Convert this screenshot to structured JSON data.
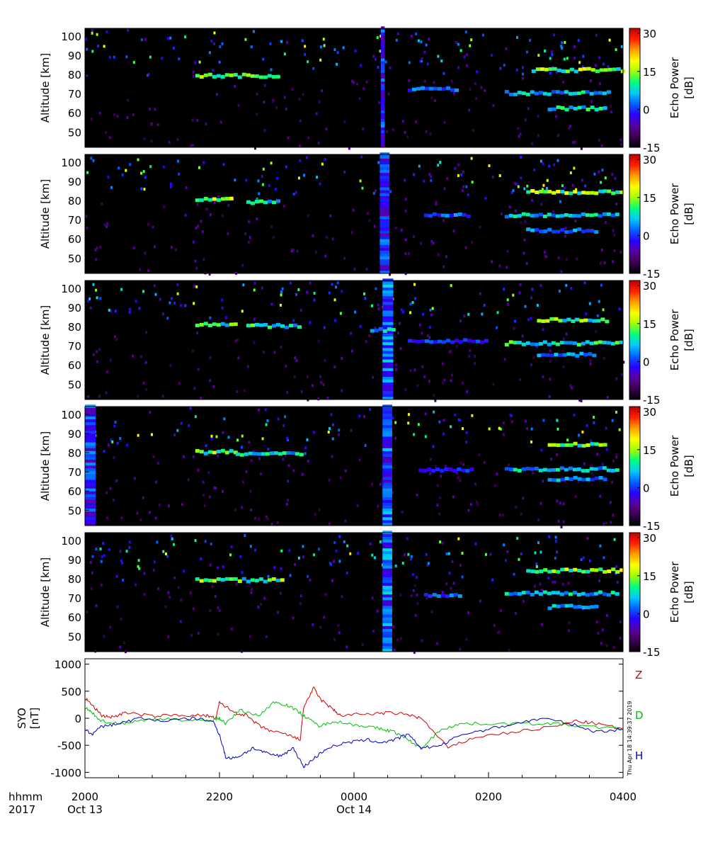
{
  "chart_data": [
    {
      "type": "heatmap",
      "panel": 1,
      "ylabel": "Altitude [km]",
      "ylim": [
        42,
        104
      ],
      "yticks": [
        50,
        60,
        70,
        80,
        90,
        100
      ],
      "colorbar": {
        "label": "Echo Power [dB]",
        "range": [
          -15,
          32
        ],
        "ticks": [
          -15,
          0,
          15,
          30
        ]
      },
      "echo_layers": [
        {
          "x_start": 0.205,
          "x_end": 0.36,
          "alt": 79,
          "level": 0.55
        },
        {
          "x_start": 0.83,
          "x_end": 1.0,
          "alt": 82,
          "level": 0.6
        },
        {
          "x_start": 0.78,
          "x_end": 0.97,
          "alt": 70,
          "level": 0.45
        },
        {
          "x_start": 0.86,
          "x_end": 0.97,
          "alt": 62,
          "level": 0.5
        },
        {
          "x_start": 0.6,
          "x_end": 0.69,
          "alt": 72,
          "level": 0.35
        }
      ],
      "vertical_bands": [
        {
          "x": 0.55,
          "width": 0.007,
          "level": 0.3
        }
      ]
    },
    {
      "type": "heatmap",
      "panel": 2,
      "ylabel": "Altitude [km]",
      "ylim": [
        42,
        104
      ],
      "yticks": [
        50,
        60,
        70,
        80,
        90,
        100
      ],
      "colorbar": {
        "label": "Echo Power [dB]",
        "range": [
          -15,
          32
        ],
        "ticks": [
          -15,
          0,
          15,
          30
        ]
      },
      "echo_layers": [
        {
          "x_start": 0.205,
          "x_end": 0.27,
          "alt": 80,
          "level": 0.6
        },
        {
          "x_start": 0.3,
          "x_end": 0.36,
          "alt": 79,
          "level": 0.5
        },
        {
          "x_start": 0.82,
          "x_end": 1.0,
          "alt": 84,
          "level": 0.6
        },
        {
          "x_start": 0.78,
          "x_end": 0.99,
          "alt": 72,
          "level": 0.45
        },
        {
          "x_start": 0.82,
          "x_end": 0.95,
          "alt": 64,
          "level": 0.4
        },
        {
          "x_start": 0.63,
          "x_end": 0.71,
          "alt": 72,
          "level": 0.35
        }
      ],
      "vertical_bands": [
        {
          "x": 0.548,
          "width": 0.018,
          "level": 0.3
        }
      ]
    },
    {
      "type": "heatmap",
      "panel": 3,
      "ylabel": "Altitude [km]",
      "ylim": [
        42,
        104
      ],
      "yticks": [
        50,
        60,
        70,
        80,
        90,
        100
      ],
      "colorbar": {
        "label": "Echo Power [dB]",
        "range": [
          -15,
          32
        ],
        "ticks": [
          -15,
          0,
          15,
          30
        ]
      },
      "echo_layers": [
        {
          "x_start": 0.205,
          "x_end": 0.28,
          "alt": 81,
          "level": 0.55
        },
        {
          "x_start": 0.3,
          "x_end": 0.4,
          "alt": 80,
          "level": 0.5
        },
        {
          "x_start": 0.53,
          "x_end": 0.57,
          "alt": 78,
          "level": 0.45
        },
        {
          "x_start": 0.84,
          "x_end": 0.97,
          "alt": 83,
          "level": 0.55
        },
        {
          "x_start": 0.78,
          "x_end": 1.0,
          "alt": 71,
          "level": 0.5
        },
        {
          "x_start": 0.84,
          "x_end": 0.95,
          "alt": 65,
          "level": 0.4
        },
        {
          "x_start": 0.6,
          "x_end": 0.75,
          "alt": 72,
          "level": 0.3
        }
      ],
      "vertical_bands": [
        {
          "x": 0.553,
          "width": 0.02,
          "level": 0.35
        }
      ]
    },
    {
      "type": "heatmap",
      "panel": 4,
      "ylabel": "Altitude [km]",
      "ylim": [
        42,
        104
      ],
      "yticks": [
        50,
        60,
        70,
        80,
        90,
        100
      ],
      "colorbar": {
        "label": "Echo Power [dB]",
        "range": [
          -15,
          32
        ],
        "ticks": [
          -15,
          0,
          15,
          30
        ]
      },
      "echo_layers": [
        {
          "x_start": 0.205,
          "x_end": 0.28,
          "alt": 80,
          "level": 0.55
        },
        {
          "x_start": 0.28,
          "x_end": 0.4,
          "alt": 79,
          "level": 0.45
        },
        {
          "x_start": 0.86,
          "x_end": 0.97,
          "alt": 84,
          "level": 0.55
        },
        {
          "x_start": 0.78,
          "x_end": 0.99,
          "alt": 71,
          "level": 0.45
        },
        {
          "x_start": 0.86,
          "x_end": 0.97,
          "alt": 66,
          "level": 0.4
        },
        {
          "x_start": 0.62,
          "x_end": 0.72,
          "alt": 71,
          "level": 0.3
        }
      ],
      "vertical_bands": [
        {
          "x": 0.553,
          "width": 0.018,
          "level": 0.35
        },
        {
          "x": 0.0,
          "width": 0.02,
          "level": 0.3
        }
      ]
    },
    {
      "type": "heatmap",
      "panel": 5,
      "ylabel": "Altitude [km]",
      "ylim": [
        42,
        104
      ],
      "yticks": [
        50,
        60,
        70,
        80,
        90,
        100
      ],
      "colorbar": {
        "label": "Echo Power [dB]",
        "range": [
          -15,
          32
        ],
        "ticks": [
          -15,
          0,
          15,
          30
        ]
      },
      "echo_layers": [
        {
          "x_start": 0.205,
          "x_end": 0.37,
          "alt": 79,
          "level": 0.55
        },
        {
          "x_start": 0.82,
          "x_end": 1.0,
          "alt": 84,
          "level": 0.6
        },
        {
          "x_start": 0.78,
          "x_end": 0.99,
          "alt": 72,
          "level": 0.45
        },
        {
          "x_start": 0.86,
          "x_end": 0.95,
          "alt": 65,
          "level": 0.45
        },
        {
          "x_start": 0.63,
          "x_end": 0.7,
          "alt": 71,
          "level": 0.35
        }
      ],
      "vertical_bands": [
        {
          "x": 0.553,
          "width": 0.018,
          "level": 0.35
        }
      ]
    },
    {
      "type": "line",
      "ylabel": "SYO [nT]",
      "ylim": [
        -1100,
        1100
      ],
      "yticks": [
        -1000,
        -500,
        0,
        500,
        1000
      ],
      "x_range_hours": [
        0,
        8
      ],
      "series": [
        {
          "name": "Z",
          "color": "#d00000",
          "x": [
            0,
            0.1,
            0.25,
            0.4,
            0.6,
            1.0,
            1.4,
            1.8,
            1.95,
            2.0,
            2.2,
            2.4,
            2.6,
            2.8,
            3.0,
            3.2,
            3.25,
            3.4,
            3.5,
            3.7,
            3.8,
            4.2,
            4.5,
            4.8,
            5.0,
            5.4,
            5.8,
            6.4,
            7.0,
            7.3,
            7.6,
            8.0
          ],
          "values": [
            380,
            250,
            50,
            20,
            100,
            40,
            60,
            50,
            0,
            300,
            120,
            50,
            -150,
            -250,
            -300,
            -400,
            200,
            560,
            350,
            150,
            50,
            80,
            100,
            70,
            0,
            -550,
            -350,
            -250,
            -150,
            -50,
            -100,
            -200
          ]
        },
        {
          "name": "D",
          "color": "#00c000",
          "x": [
            0,
            0.1,
            0.25,
            0.5,
            0.8,
            1.2,
            1.6,
            1.9,
            2.0,
            2.1,
            2.3,
            2.6,
            2.8,
            3.0,
            3.2,
            3.3,
            3.5,
            3.7,
            3.9,
            4.2,
            4.4,
            4.6,
            4.8,
            5.0,
            5.3,
            5.6,
            6.0,
            6.6,
            7.0,
            7.4,
            8.0
          ],
          "values": [
            200,
            100,
            -50,
            -100,
            -50,
            0,
            -50,
            -30,
            0,
            -100,
            150,
            50,
            300,
            250,
            100,
            0,
            -150,
            -50,
            -100,
            -150,
            -200,
            -250,
            -400,
            -550,
            -200,
            -100,
            -100,
            -100,
            -100,
            -150,
            -200
          ]
        },
        {
          "name": "H",
          "color": "#0000c0",
          "x": [
            0,
            0.1,
            0.25,
            0.5,
            0.8,
            1.2,
            1.6,
            1.9,
            2.0,
            2.1,
            2.3,
            2.5,
            2.7,
            2.9,
            3.1,
            3.25,
            3.4,
            3.6,
            3.9,
            4.2,
            4.4,
            4.6,
            4.8,
            5.0,
            5.3,
            5.6,
            6.0,
            6.4,
            6.8,
            7.2,
            7.6,
            8.0
          ],
          "values": [
            -200,
            -300,
            -150,
            -100,
            0,
            -50,
            0,
            -50,
            -300,
            -750,
            -700,
            -550,
            -650,
            -700,
            -550,
            -900,
            -750,
            -550,
            -450,
            -400,
            -450,
            -400,
            -300,
            -550,
            -500,
            -300,
            -200,
            -100,
            0,
            -100,
            -250,
            -200
          ]
        }
      ]
    }
  ],
  "x_axis": {
    "row_labels": [
      "hhmm",
      "2017"
    ],
    "ticks": [
      {
        "hour": 0,
        "time": "2000",
        "date": "Oct 13"
      },
      {
        "hour": 2,
        "time": "2200",
        "date": ""
      },
      {
        "hour": 4,
        "time": "0000",
        "date": "Oct 14"
      },
      {
        "hour": 6,
        "time": "0200",
        "date": ""
      },
      {
        "hour": 8,
        "time": "0400",
        "date": ""
      }
    ],
    "minor_ticks_per_major": 4
  },
  "colors": {
    "background": "#000000",
    "colorbar": [
      "#000000",
      "#3a0050",
      "#5a00a0",
      "#2a00ff",
      "#0060ff",
      "#00c8ff",
      "#00ff80",
      "#a0ff00",
      "#ffff00",
      "#ffa000",
      "#ff2000",
      "#c00000"
    ]
  },
  "timestamp": "Thu Apr 18 14:39:37 2019"
}
